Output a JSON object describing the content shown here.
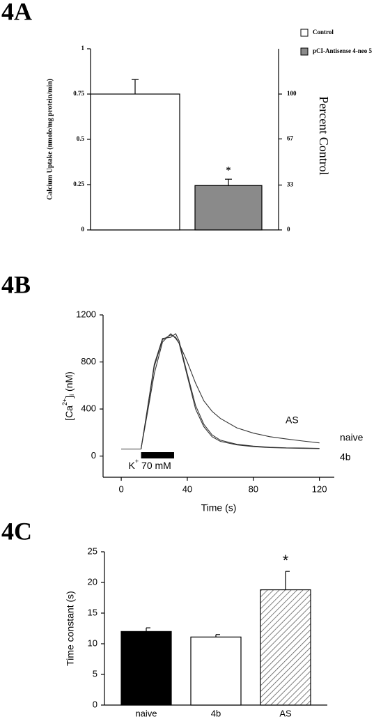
{
  "chart_data": [
    {
      "type": "bar",
      "panel": "4A",
      "ylabel": "Calcium Uptake (nmole/mg protein/min)",
      "y2label": "Percent Control",
      "categories": [
        null
      ],
      "series": [
        {
          "name": "Control",
          "color": "#ffffff",
          "values": [
            0.75
          ],
          "errors": [
            0.08
          ]
        },
        {
          "name": "pCI-Antisense 4-neo 5",
          "color": "#8a8a8a",
          "values": [
            0.245
          ],
          "errors": [
            0.035
          ],
          "significance": "*"
        }
      ],
      "ylim": [
        0,
        1
      ],
      "yticks": [
        0,
        0.25,
        0.5,
        0.75,
        1
      ],
      "y2lim": [
        0,
        133.33
      ],
      "y2ticks": [
        0,
        33,
        67,
        100
      ],
      "legend": "upper right"
    },
    {
      "type": "line",
      "panel": "4B",
      "xlabel": "Time (s)",
      "ylabel": [
        "[Ca",
        "2+",
        "]",
        "i",
        " (nM)"
      ],
      "x": [
        0,
        5,
        10,
        12,
        15,
        20,
        25,
        30,
        33,
        35,
        40,
        45,
        50,
        55,
        60,
        70,
        80,
        90,
        100,
        110,
        120
      ],
      "series": [
        {
          "name": "naive",
          "color": "#333333",
          "values": [
            60,
            60,
            60,
            60,
            330,
            780,
            1000,
            1010,
            1040,
            980,
            700,
            430,
            270,
            180,
            135,
            100,
            85,
            75,
            70,
            68,
            66
          ]
        },
        {
          "name": "4b",
          "color": "#333333",
          "values": [
            60,
            60,
            60,
            60,
            320,
            760,
            990,
            1030,
            1010,
            960,
            680,
            400,
            250,
            165,
            125,
            95,
            80,
            72,
            68,
            65,
            63
          ]
        },
        {
          "name": "AS",
          "color": "#333333",
          "values": [
            60,
            60,
            60,
            60,
            300,
            700,
            970,
            1040,
            1000,
            960,
            800,
            620,
            470,
            380,
            320,
            240,
            195,
            165,
            145,
            128,
            112
          ]
        }
      ],
      "xlim": [
        -11,
        129
      ],
      "ylim": [
        -180,
        1200
      ],
      "xticks": [
        0,
        40,
        80,
        120
      ],
      "yticks": [
        0,
        400,
        800,
        1200
      ],
      "stimulus": {
        "text": [
          "K",
          "+",
          " 70 mM"
        ],
        "start": 12,
        "end": 32
      }
    },
    {
      "type": "bar",
      "panel": "4C",
      "ylabel": "Time constant (s)",
      "categories": [
        "naive",
        "4b",
        "AS"
      ],
      "values": [
        12.0,
        11.1,
        18.8
      ],
      "errors": [
        0.6,
        0.4,
        3.0
      ],
      "colors": [
        "#000000",
        "#ffffff",
        "#ffffff"
      ],
      "hatch": [
        false,
        false,
        true
      ],
      "significance": [
        null,
        null,
        "*"
      ],
      "ylim": [
        0,
        25
      ],
      "yticks": [
        0,
        5,
        10,
        15,
        20,
        25
      ]
    }
  ]
}
